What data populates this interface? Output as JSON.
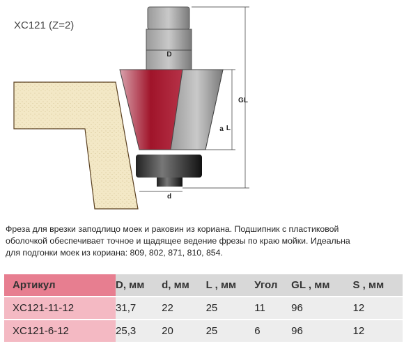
{
  "header": {
    "title": "XC121 (Z=2)"
  },
  "diagram": {
    "labels": {
      "D": "D",
      "GL": "GL",
      "L": "L",
      "a": "a",
      "d": "d"
    }
  },
  "description": {
    "lines": [
      "Фреза для врезки заподлицо моек и раковин из кориана. Подшипник с пластиковой",
      "оболочкой обеспечивает точное и щадящее ведение фрезы по краю мойки. Идеальна",
      "для подгонки моек из кориана: 809, 802, 871, 810, 854."
    ]
  },
  "table": {
    "headers": [
      "Артикул",
      "D, мм",
      "d, мм",
      "L , мм",
      "Угол",
      "GL , мм",
      "S , мм"
    ],
    "rows": [
      [
        "XC121-11-12",
        "31,7",
        "22",
        "25",
        "11",
        "96",
        "12"
      ],
      [
        "XC121-6-12",
        "25,3",
        "20",
        "25",
        "6",
        "96",
        "12"
      ]
    ]
  }
}
